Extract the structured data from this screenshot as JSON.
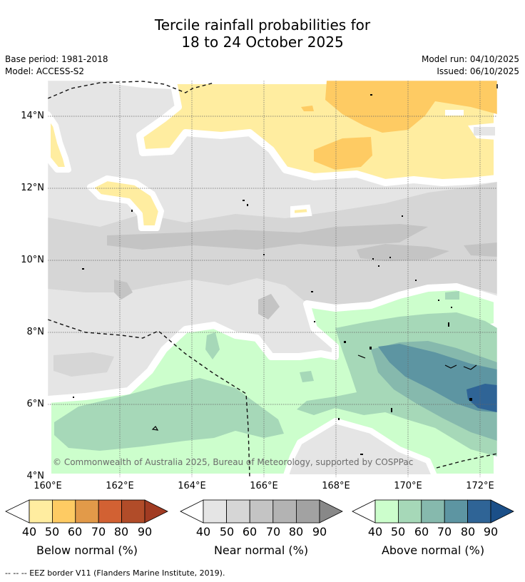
{
  "title": {
    "line1": "Tercile rainfall probabilities for",
    "line2": "18 to 24 October 2025"
  },
  "meta": {
    "base_period": "Base period: 1981-2018",
    "model": "Model: ACCESS-S2",
    "model_run": "Model run: 04/10/2025",
    "issued": "Issued: 06/10/2025"
  },
  "map": {
    "lat_labels": [
      "14°N",
      "12°N",
      "10°N",
      "8°N",
      "6°N",
      "4°N"
    ],
    "lon_labels": [
      "160°E",
      "162°E",
      "164°E",
      "166°E",
      "168°E",
      "170°E",
      "172°E"
    ],
    "copyright": "© Commonwealth of Australia 2025, Bureau of Meteorology, supported by COSPPac"
  },
  "colorbars": [
    {
      "label": "Below normal (%)",
      "ticks": [
        "40",
        "50",
        "60",
        "70",
        "80",
        "90"
      ],
      "colors": [
        "#ffeda0",
        "#fecb63",
        "#e29a49",
        "#d26133",
        "#b14c29",
        "#a13b22"
      ]
    },
    {
      "label": "Near normal (%)",
      "ticks": [
        "40",
        "50",
        "60",
        "70",
        "80",
        "90"
      ],
      "colors": [
        "#e5e5e5",
        "#d6d6d6",
        "#c4c4c4",
        "#b3b3b3",
        "#a2a2a2",
        "#888888"
      ]
    },
    {
      "label": "Above normal (%)",
      "ticks": [
        "40",
        "50",
        "60",
        "70",
        "80",
        "90"
      ],
      "colors": [
        "#ccfecc",
        "#a6d8b8",
        "#86b9ad",
        "#5d95a2",
        "#2f6496",
        "#1b4f88"
      ]
    }
  ],
  "legend_note": "--  --  -- EEZ border V11 (Flanders Marine Institute, 2019)."
}
